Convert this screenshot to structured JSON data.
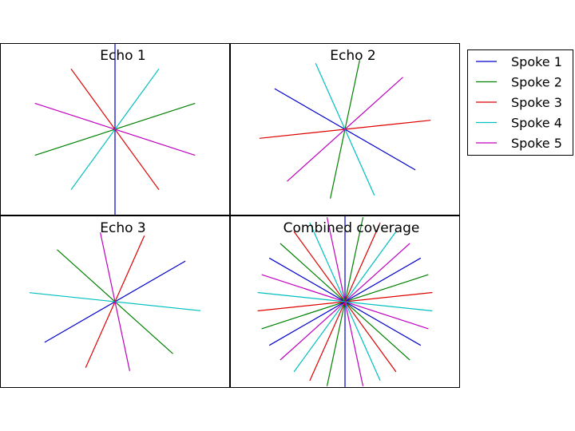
{
  "chart_data": {
    "type": "line",
    "description_units": "spoke direction angle in degrees (counter-clockwise from +x), each spoke drawn as a full line through the center",
    "series_colors": {
      "Spoke 1": "#0000cc",
      "Spoke 2": "#008000",
      "Spoke 3": "#dd0000",
      "Spoke 4": "#00bfbf",
      "Spoke 5": "#bf00bf"
    },
    "legend": {
      "placement": "outside-right",
      "entries": [
        "Spoke 1",
        "Spoke 2",
        "Spoke 3",
        "Spoke 4",
        "Spoke 5"
      ]
    },
    "grid": false,
    "axis_ticks": false,
    "panels": [
      {
        "title": "Echo 1",
        "spokes": [
          {
            "name": "Spoke 1",
            "angle": 90
          },
          {
            "name": "Spoke 2",
            "angle": 18
          },
          {
            "name": "Spoke 3",
            "angle": 126
          },
          {
            "name": "Spoke 4",
            "angle": 54
          },
          {
            "name": "Spoke 5",
            "angle": 162
          }
        ]
      },
      {
        "title": "Echo 2",
        "spokes": [
          {
            "name": "Spoke 1",
            "angle": 150
          },
          {
            "name": "Spoke 2",
            "angle": 78
          },
          {
            "name": "Spoke 3",
            "angle": 6
          },
          {
            "name": "Spoke 4",
            "angle": 114
          },
          {
            "name": "Spoke 5",
            "angle": 42
          }
        ]
      },
      {
        "title": "Echo 3",
        "spokes": [
          {
            "name": "Spoke 1",
            "angle": 30
          },
          {
            "name": "Spoke 2",
            "angle": 138
          },
          {
            "name": "Spoke 3",
            "angle": 66
          },
          {
            "name": "Spoke 4",
            "angle": 174
          },
          {
            "name": "Spoke 5",
            "angle": 102
          }
        ]
      },
      {
        "title": "Combined coverage",
        "combined": true,
        "spokes": [
          {
            "name": "Spoke 1",
            "angle": 90
          },
          {
            "name": "Spoke 2",
            "angle": 18
          },
          {
            "name": "Spoke 3",
            "angle": 126
          },
          {
            "name": "Spoke 4",
            "angle": 54
          },
          {
            "name": "Spoke 5",
            "angle": 162
          },
          {
            "name": "Spoke 1",
            "angle": 150
          },
          {
            "name": "Spoke 2",
            "angle": 78
          },
          {
            "name": "Spoke 3",
            "angle": 6
          },
          {
            "name": "Spoke 4",
            "angle": 114
          },
          {
            "name": "Spoke 5",
            "angle": 42
          },
          {
            "name": "Spoke 1",
            "angle": 30
          },
          {
            "name": "Spoke 2",
            "angle": 138
          },
          {
            "name": "Spoke 3",
            "angle": 66
          },
          {
            "name": "Spoke 4",
            "angle": 174
          },
          {
            "name": "Spoke 5",
            "angle": 102
          }
        ]
      }
    ]
  }
}
